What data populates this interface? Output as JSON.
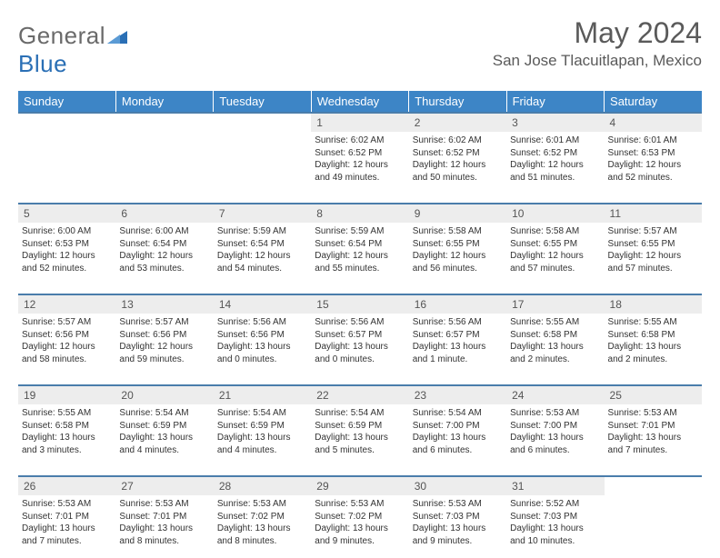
{
  "branding": {
    "word1": "General",
    "word2": "Blue",
    "icon_fill": "#2a6fb5"
  },
  "header": {
    "month_title": "May 2024",
    "location": "San Jose Tlacuitlapan, Mexico"
  },
  "colors": {
    "header_bg": "#3d85c6",
    "header_text": "#ffffff",
    "row_border": "#4a7dab",
    "daynum_bg": "#ededed",
    "text": "#333333"
  },
  "days_of_week": [
    "Sunday",
    "Monday",
    "Tuesday",
    "Wednesday",
    "Thursday",
    "Friday",
    "Saturday"
  ],
  "weeks": [
    [
      null,
      null,
      null,
      {
        "n": "1",
        "sr": "6:02 AM",
        "ss": "6:52 PM",
        "dl": "12 hours and 49 minutes."
      },
      {
        "n": "2",
        "sr": "6:02 AM",
        "ss": "6:52 PM",
        "dl": "12 hours and 50 minutes."
      },
      {
        "n": "3",
        "sr": "6:01 AM",
        "ss": "6:52 PM",
        "dl": "12 hours and 51 minutes."
      },
      {
        "n": "4",
        "sr": "6:01 AM",
        "ss": "6:53 PM",
        "dl": "12 hours and 52 minutes."
      }
    ],
    [
      {
        "n": "5",
        "sr": "6:00 AM",
        "ss": "6:53 PM",
        "dl": "12 hours and 52 minutes."
      },
      {
        "n": "6",
        "sr": "6:00 AM",
        "ss": "6:54 PM",
        "dl": "12 hours and 53 minutes."
      },
      {
        "n": "7",
        "sr": "5:59 AM",
        "ss": "6:54 PM",
        "dl": "12 hours and 54 minutes."
      },
      {
        "n": "8",
        "sr": "5:59 AM",
        "ss": "6:54 PM",
        "dl": "12 hours and 55 minutes."
      },
      {
        "n": "9",
        "sr": "5:58 AM",
        "ss": "6:55 PM",
        "dl": "12 hours and 56 minutes."
      },
      {
        "n": "10",
        "sr": "5:58 AM",
        "ss": "6:55 PM",
        "dl": "12 hours and 57 minutes."
      },
      {
        "n": "11",
        "sr": "5:57 AM",
        "ss": "6:55 PM",
        "dl": "12 hours and 57 minutes."
      }
    ],
    [
      {
        "n": "12",
        "sr": "5:57 AM",
        "ss": "6:56 PM",
        "dl": "12 hours and 58 minutes."
      },
      {
        "n": "13",
        "sr": "5:57 AM",
        "ss": "6:56 PM",
        "dl": "12 hours and 59 minutes."
      },
      {
        "n": "14",
        "sr": "5:56 AM",
        "ss": "6:56 PM",
        "dl": "13 hours and 0 minutes."
      },
      {
        "n": "15",
        "sr": "5:56 AM",
        "ss": "6:57 PM",
        "dl": "13 hours and 0 minutes."
      },
      {
        "n": "16",
        "sr": "5:56 AM",
        "ss": "6:57 PM",
        "dl": "13 hours and 1 minute."
      },
      {
        "n": "17",
        "sr": "5:55 AM",
        "ss": "6:58 PM",
        "dl": "13 hours and 2 minutes."
      },
      {
        "n": "18",
        "sr": "5:55 AM",
        "ss": "6:58 PM",
        "dl": "13 hours and 2 minutes."
      }
    ],
    [
      {
        "n": "19",
        "sr": "5:55 AM",
        "ss": "6:58 PM",
        "dl": "13 hours and 3 minutes."
      },
      {
        "n": "20",
        "sr": "5:54 AM",
        "ss": "6:59 PM",
        "dl": "13 hours and 4 minutes."
      },
      {
        "n": "21",
        "sr": "5:54 AM",
        "ss": "6:59 PM",
        "dl": "13 hours and 4 minutes."
      },
      {
        "n": "22",
        "sr": "5:54 AM",
        "ss": "6:59 PM",
        "dl": "13 hours and 5 minutes."
      },
      {
        "n": "23",
        "sr": "5:54 AM",
        "ss": "7:00 PM",
        "dl": "13 hours and 6 minutes."
      },
      {
        "n": "24",
        "sr": "5:53 AM",
        "ss": "7:00 PM",
        "dl": "13 hours and 6 minutes."
      },
      {
        "n": "25",
        "sr": "5:53 AM",
        "ss": "7:01 PM",
        "dl": "13 hours and 7 minutes."
      }
    ],
    [
      {
        "n": "26",
        "sr": "5:53 AM",
        "ss": "7:01 PM",
        "dl": "13 hours and 7 minutes."
      },
      {
        "n": "27",
        "sr": "5:53 AM",
        "ss": "7:01 PM",
        "dl": "13 hours and 8 minutes."
      },
      {
        "n": "28",
        "sr": "5:53 AM",
        "ss": "7:02 PM",
        "dl": "13 hours and 8 minutes."
      },
      {
        "n": "29",
        "sr": "5:53 AM",
        "ss": "7:02 PM",
        "dl": "13 hours and 9 minutes."
      },
      {
        "n": "30",
        "sr": "5:53 AM",
        "ss": "7:03 PM",
        "dl": "13 hours and 9 minutes."
      },
      {
        "n": "31",
        "sr": "5:52 AM",
        "ss": "7:03 PM",
        "dl": "13 hours and 10 minutes."
      },
      null
    ]
  ],
  "labels": {
    "sunrise": "Sunrise:",
    "sunset": "Sunset:",
    "daylight": "Daylight:"
  }
}
